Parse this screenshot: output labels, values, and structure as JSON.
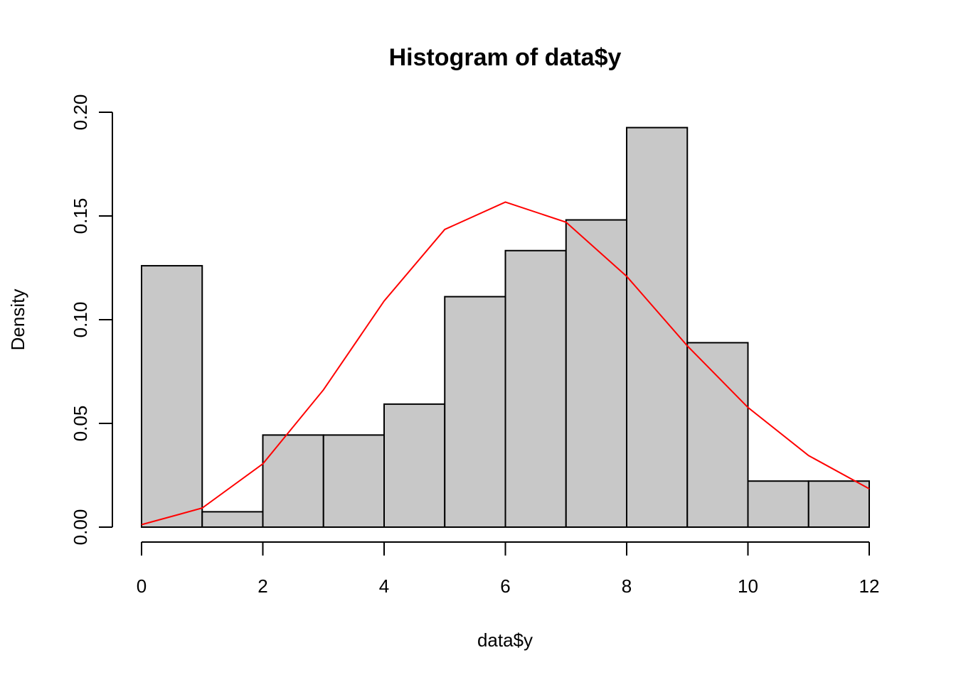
{
  "chart_data": {
    "type": "bar",
    "title": "Histogram of data$y",
    "xlabel": "data$y",
    "ylabel": "Density",
    "xlim": [
      0,
      12
    ],
    "ylim": [
      0,
      0.2
    ],
    "grid": false,
    "bins": [
      {
        "start": 0,
        "end": 1,
        "value": 0.126
      },
      {
        "start": 1,
        "end": 2,
        "value": 0.0074
      },
      {
        "start": 2,
        "end": 3,
        "value": 0.0444
      },
      {
        "start": 3,
        "end": 4,
        "value": 0.0444
      },
      {
        "start": 4,
        "end": 5,
        "value": 0.0593
      },
      {
        "start": 5,
        "end": 6,
        "value": 0.1111
      },
      {
        "start": 6,
        "end": 7,
        "value": 0.1333
      },
      {
        "start": 7,
        "end": 8,
        "value": 0.1481
      },
      {
        "start": 8,
        "end": 9,
        "value": 0.1926
      },
      {
        "start": 9,
        "end": 10,
        "value": 0.0889
      },
      {
        "start": 10,
        "end": 11,
        "value": 0.0222
      },
      {
        "start": 11,
        "end": 12,
        "value": 0.0222
      }
    ],
    "xticks": [
      0,
      2,
      4,
      6,
      8,
      10,
      12
    ],
    "xtick_labels": [
      "0",
      "2",
      "4",
      "6",
      "8",
      "10",
      "12"
    ],
    "yticks": [
      0,
      0.05,
      0.1,
      0.15,
      0.2
    ],
    "ytick_labels": [
      "0.00",
      "0.05",
      "0.10",
      "0.15",
      "0.20"
    ],
    "line_series": {
      "x": [
        0,
        1,
        2,
        3,
        4,
        5,
        6,
        7,
        8,
        9,
        10,
        11,
        12
      ],
      "y": [
        0.0012,
        0.0092,
        0.0305,
        0.0662,
        0.109,
        0.1435,
        0.1567,
        0.147,
        0.1209,
        0.0874,
        0.0577,
        0.0345,
        0.0185
      ]
    },
    "colors": {
      "bar_fill": "#c8c8c8",
      "bar_edge": "#000000",
      "line": "#ff0000",
      "axis": "#000000"
    }
  }
}
